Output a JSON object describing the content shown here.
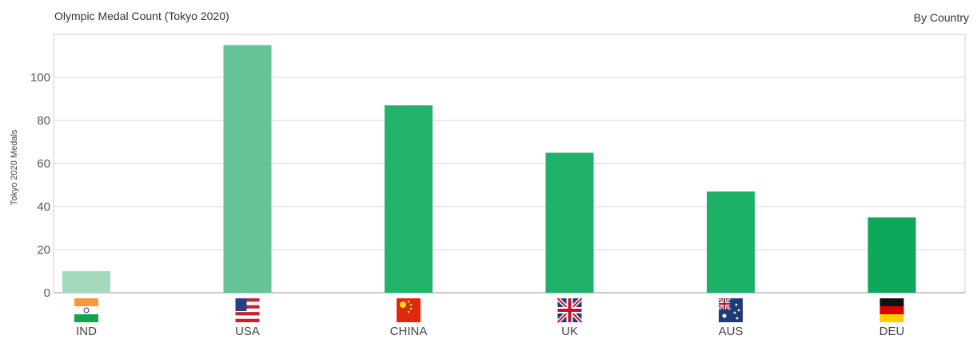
{
  "chart_data": {
    "type": "bar",
    "title": "Olympic Medal Count (Tokyo 2020)",
    "subtitle": "By Country",
    "ylabel": "Tokyo 2020 Medals",
    "xlabel": "",
    "categories": [
      "IND",
      "USA",
      "CHINA",
      "UK",
      "AUS",
      "DEU"
    ],
    "values": [
      10,
      115,
      87,
      65,
      47,
      35
    ],
    "ylim": [
      0,
      120
    ],
    "yticks": [
      0,
      20,
      40,
      60,
      80,
      100
    ],
    "grid": true,
    "colors": [
      "#a3d9bd",
      "#66c297",
      "#21b36a",
      "#1fb169",
      "#1db067",
      "#0ea85a"
    ],
    "flag_icons": [
      "india-flag-icon",
      "usa-flag-icon",
      "china-flag-icon",
      "uk-flag-icon",
      "australia-flag-icon",
      "germany-flag-icon"
    ]
  }
}
